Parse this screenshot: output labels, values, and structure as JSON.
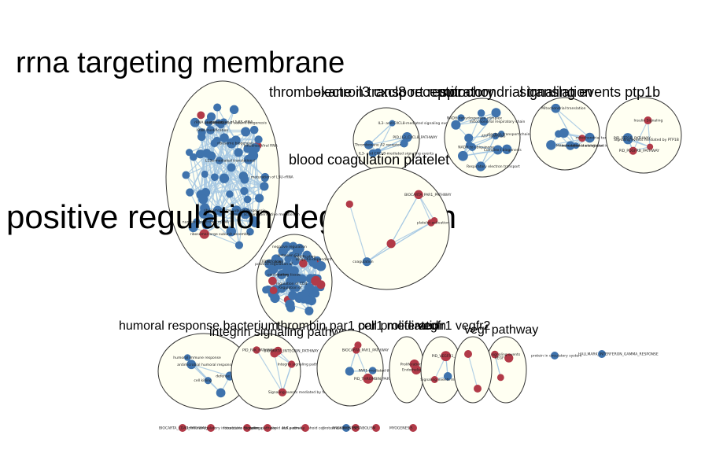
{
  "clusters": [
    {
      "key": "rrna",
      "label": "rrna targeting membrane",
      "size": 38
    },
    {
      "key": "posreg",
      "label": "positive regulation degradation",
      "size": 42
    },
    {
      "key": "thrombox",
      "label": "thromboxane il3 cxcl8 receptor",
      "size": 18
    },
    {
      "key": "electron",
      "label": "electron transport respiratory",
      "size": 18
    },
    {
      "key": "mito",
      "label": "mitochondrial translation",
      "size": 18
    },
    {
      "key": "signaling",
      "label": "signaling events ptp1b",
      "size": 18
    },
    {
      "key": "blood",
      "label": "blood coagulation platelet",
      "size": 18
    },
    {
      "key": "humoral",
      "label": "humoral response bacterium",
      "size": 16
    },
    {
      "key": "integrin",
      "label": "integrin signaling pathway",
      "size": 16
    },
    {
      "key": "thrombin",
      "label": "thrombin par1 par1 mediated",
      "size": 16
    },
    {
      "key": "cell",
      "label": "cell proliferation",
      "size": 16
    },
    {
      "key": "vegfr1",
      "label": "vegfr1 vegfr2",
      "size": 16
    },
    {
      "key": "vegf",
      "label": "vegf pathway",
      "size": 16
    }
  ],
  "node_labels": {
    "rrna": [
      "maturation of LSU-rRNA",
      "ribosomal large subunit biogenesis",
      "ribosomal small subunit biogenesis",
      "ribosomal large subunit assembly",
      "maturation of 5.8S rRNA",
      "rRNA processing",
      "ribosome biogenesis",
      "nuclear-transcribed mRNA",
      "L13a-mediated translational",
      "rRNA modification",
      "Influenza Viral RNA",
      "Amino acid and derivative metabolism"
    ],
    "posreg": [
      "positive regulation of",
      "Regulation of",
      "between G1",
      "FBXL7 down",
      "during tissue",
      "negative regulation",
      "modification",
      "conjugation",
      "cell cycle",
      "regulation of CD4",
      "ubiquitin-dependent protein"
    ],
    "thrombox": [
      "IL3- and CXCL8-mediated signaling events",
      "IL3- and CXCL8-mediated signaling events",
      "PID_IL3_CXCL8_PATHWAY",
      "Thromboxane A2 receptor"
    ],
    "electron": [
      "electron transport chain",
      "NADH to ubiquinone",
      "Complex I biogenesis",
      "mitochondrial respiratory chain",
      "ATP synthesis",
      "Respiratory electron transport",
      "NADH dehydrogenase complex"
    ],
    "mito": [
      "Mitochondrial translational initiation",
      "translational elongation",
      "Mitochondrial translation",
      "mitochondrial termination"
    ],
    "signaling": [
      "Signaling events mediated by PTP1B",
      "PID_PTP1B_PATHWAY",
      "Insulin Signaling",
      "PID_PDGFRB_PATHWAY"
    ],
    "blood": [
      "platelet activation",
      "BIOCARTA_PAR1_PATHWAY",
      "coagulation"
    ],
    "humoral": [
      "defense response to bacterium",
      "antimicrobial humoral response",
      "humoral immune response",
      "cell killing"
    ],
    "integrin": [
      "Signaling events mediated by focal adhesion kinase",
      "Integrin signaling pathway",
      "BIOCARTA_INTEGRIN_PATHWAY",
      "PID_FAK_PATHWAY"
    ],
    "thrombin": [
      "BIOCARTA_PAR1_PATHWAY",
      "PAR1-mediated thrombin signaling events",
      "PID_THROMBIN_PAR1_PATHWAY"
    ],
    "cell": [
      "Proliferation",
      "Endothelial cell proliferation"
    ],
    "vegfr1": [
      "Signaling events mediated by VEGFR1 and VEGFR2",
      "PID_VEGFR1_2_PATHWAY"
    ],
    "vegf": [
      "VEGF",
      "VEGF signaling events"
    ]
  },
  "singletons": [
    {
      "label": "BIOCARTA_CD40_PATHWAY",
      "color": "red"
    },
    {
      "label": "Immunoregulatory interactions between a Lymphoid and a non-Lymphoid cell",
      "color": "red"
    },
    {
      "label": "Interleukin receptor",
      "color": "red"
    },
    {
      "label": "Signaling pathway",
      "color": "red"
    },
    {
      "label": "ALK pathway",
      "color": "red"
    },
    {
      "label": "protein binding",
      "color": "blue"
    },
    {
      "label": "ANGIOGENESIS",
      "color": "red"
    },
    {
      "label": "METABOLISM",
      "color": "red"
    },
    {
      "label": "MYOGENESIS",
      "color": "red"
    },
    {
      "label": "HALLMARK_INTERFERON_GAMMA_RESPONSE",
      "color": "blue"
    },
    {
      "label": "protein in circulatory system",
      "color": "blue"
    }
  ],
  "colors": {
    "blue": "#3f73ad",
    "red": "#b23a48",
    "edge": "#a6c8e3",
    "cluster_fill": "#fffff2"
  }
}
